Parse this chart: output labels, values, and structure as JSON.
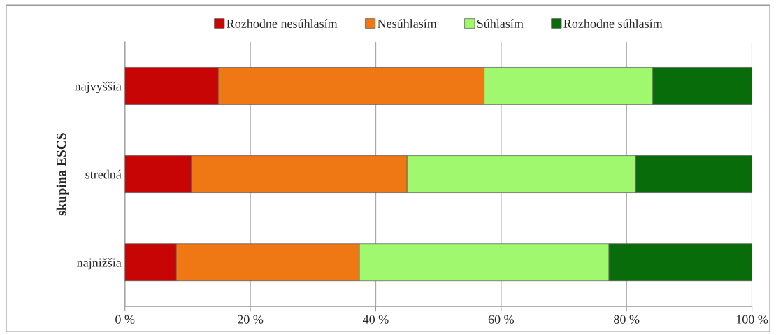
{
  "chart_data": {
    "type": "bar",
    "orientation": "horizontal",
    "stacked": true,
    "ylabel": "skupina ESCS",
    "categories": [
      "najvyššia",
      "stredná",
      "najnižšia"
    ],
    "series": [
      {
        "name": "Rozhodne nesúhlasím",
        "color": "#c80505",
        "values": [
          14.9,
          10.6,
          8.2
        ]
      },
      {
        "name": "Nesúhlasím",
        "color": "#f07814",
        "values": [
          42.4,
          34.4,
          29.2
        ]
      },
      {
        "name": "Súhlasím",
        "color": "#a0f86e",
        "values": [
          26.9,
          36.5,
          39.8
        ]
      },
      {
        "name": "Rozhodne súhlasím",
        "color": "#086c0a",
        "values": [
          15.8,
          18.5,
          22.8
        ]
      }
    ],
    "xlim": [
      0,
      100
    ],
    "xticks": [
      {
        "value": 0,
        "label": "0 %"
      },
      {
        "value": 20,
        "label": "20 %"
      },
      {
        "value": 40,
        "label": "40 %"
      },
      {
        "value": 60,
        "label": "60 %"
      },
      {
        "value": 80,
        "label": "80 %"
      },
      {
        "value": 100,
        "label": "100 %"
      }
    ],
    "grid": "x",
    "legend": "top"
  }
}
